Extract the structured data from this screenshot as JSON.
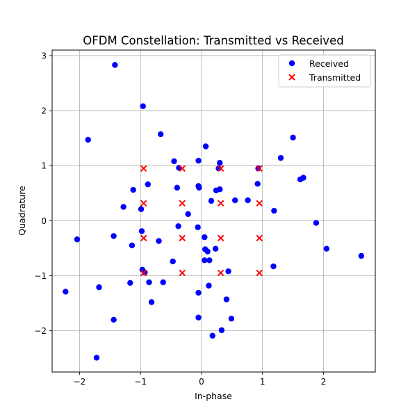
{
  "chart_data": {
    "type": "scatter",
    "title": "OFDM Constellation: Transmitted vs Received",
    "xlabel": "In-phase",
    "ylabel": "Quadrature",
    "xlim": [
      -2.45,
      2.85
    ],
    "ylim": [
      -2.75,
      3.1
    ],
    "xticks": [
      -2,
      -1,
      0,
      1,
      2
    ],
    "xtick_labels": [
      "−2",
      "−1",
      "0",
      "1",
      "2"
    ],
    "yticks": [
      -2,
      -1,
      0,
      1,
      2,
      3
    ],
    "ytick_labels": [
      "−2",
      "−1",
      "0",
      "1",
      "2",
      "3"
    ],
    "grid": true,
    "legend_position": "top-right",
    "series": [
      {
        "name": "Received",
        "marker": "circle",
        "color": "#0000ff",
        "points": [
          [
            -1.42,
            2.83
          ],
          [
            -0.96,
            2.08
          ],
          [
            -1.86,
            1.47
          ],
          [
            -0.67,
            1.57
          ],
          [
            -0.45,
            1.08
          ],
          [
            -0.37,
            0.96
          ],
          [
            -0.05,
            1.09
          ],
          [
            0.07,
            1.35
          ],
          [
            0.3,
            1.05
          ],
          [
            0.28,
            0.95
          ],
          [
            0.93,
            0.95
          ],
          [
            1.3,
            1.14
          ],
          [
            1.5,
            1.51
          ],
          [
            1.62,
            0.75
          ],
          [
            1.67,
            0.78
          ],
          [
            0.92,
            0.67
          ],
          [
            -1.12,
            0.56
          ],
          [
            -0.88,
            0.66
          ],
          [
            -0.4,
            0.6
          ],
          [
            -0.05,
            0.63
          ],
          [
            -0.04,
            0.6
          ],
          [
            0.24,
            0.55
          ],
          [
            0.3,
            0.57
          ],
          [
            0.16,
            0.36
          ],
          [
            0.55,
            0.37
          ],
          [
            0.76,
            0.37
          ],
          [
            1.19,
            0.18
          ],
          [
            -1.28,
            0.25
          ],
          [
            -0.99,
            0.21
          ],
          [
            -0.22,
            0.12
          ],
          [
            1.88,
            -0.04
          ],
          [
            -2.04,
            -0.34
          ],
          [
            -1.44,
            -0.28
          ],
          [
            -0.98,
            -0.19
          ],
          [
            -0.38,
            -0.1
          ],
          [
            -0.06,
            -0.12
          ],
          [
            0.05,
            -0.3
          ],
          [
            -1.14,
            -0.45
          ],
          [
            -0.7,
            -0.37
          ],
          [
            0.06,
            -0.52
          ],
          [
            0.1,
            -0.56
          ],
          [
            0.23,
            -0.51
          ],
          [
            2.05,
            -0.51
          ],
          [
            2.62,
            -0.64
          ],
          [
            0.05,
            -0.72
          ],
          [
            0.13,
            -0.72
          ],
          [
            -0.47,
            -0.74
          ],
          [
            1.18,
            -0.83
          ],
          [
            -0.97,
            -0.89
          ],
          [
            0.44,
            -0.92
          ],
          [
            -0.93,
            -0.94
          ],
          [
            -0.86,
            -1.12
          ],
          [
            -0.63,
            -1.12
          ],
          [
            -1.17,
            -1.13
          ],
          [
            -1.68,
            -1.21
          ],
          [
            0.12,
            -1.18
          ],
          [
            -2.23,
            -1.29
          ],
          [
            -0.05,
            -1.31
          ],
          [
            0.41,
            -1.43
          ],
          [
            -0.82,
            -1.48
          ],
          [
            -1.44,
            -1.8
          ],
          [
            -0.05,
            -1.76
          ],
          [
            0.49,
            -1.78
          ],
          [
            0.33,
            -1.99
          ],
          [
            0.18,
            -2.09
          ],
          [
            -1.72,
            -2.49
          ]
        ]
      },
      {
        "name": "Transmitted",
        "marker": "x",
        "color": "#ff0000",
        "points": [
          [
            -0.949,
            0.949
          ],
          [
            -0.316,
            0.949
          ],
          [
            0.316,
            0.949
          ],
          [
            0.949,
            0.949
          ],
          [
            -0.949,
            0.316
          ],
          [
            -0.316,
            0.316
          ],
          [
            0.316,
            0.316
          ],
          [
            0.949,
            0.316
          ],
          [
            -0.949,
            -0.316
          ],
          [
            -0.316,
            -0.316
          ],
          [
            0.316,
            -0.316
          ],
          [
            0.949,
            -0.316
          ],
          [
            -0.949,
            -0.949
          ],
          [
            -0.316,
            -0.949
          ],
          [
            0.316,
            -0.949
          ],
          [
            0.949,
            -0.949
          ]
        ]
      }
    ]
  }
}
